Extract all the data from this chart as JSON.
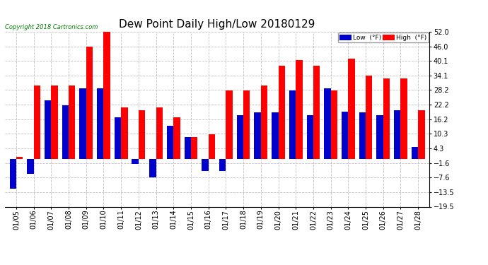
{
  "title": "Dew Point Daily High/Low 20180129",
  "copyright": "Copyright 2018 Cartronics.com",
  "dates": [
    "01/05",
    "01/06",
    "01/07",
    "01/08",
    "01/09",
    "01/10",
    "01/11",
    "01/12",
    "01/13",
    "01/14",
    "01/15",
    "01/16",
    "01/17",
    "01/18",
    "01/19",
    "01/20",
    "01/21",
    "01/22",
    "01/23",
    "01/24",
    "01/25",
    "01/26",
    "01/27",
    "01/28"
  ],
  "high": [
    1.0,
    30.0,
    30.0,
    30.0,
    46.0,
    52.0,
    21.0,
    20.0,
    21.0,
    17.0,
    9.0,
    10.0,
    28.0,
    28.0,
    30.0,
    38.0,
    40.5,
    38.0,
    28.0,
    41.0,
    34.0,
    33.0,
    33.0,
    20.0
  ],
  "low": [
    -12.0,
    -6.0,
    24.0,
    22.0,
    29.0,
    29.0,
    17.0,
    -2.0,
    -7.5,
    13.5,
    9.0,
    -5.0,
    -5.0,
    18.0,
    19.0,
    19.0,
    28.0,
    18.0,
    29.0,
    19.5,
    19.0,
    18.0,
    20.0,
    5.0
  ],
  "ylim": [
    -19.5,
    52.0
  ],
  "yticks": [
    -19.5,
    -13.5,
    -7.6,
    -1.6,
    4.3,
    10.3,
    16.2,
    22.2,
    28.2,
    34.1,
    40.1,
    46.0,
    52.0
  ],
  "high_color": "#ff0000",
  "low_color": "#0000cc",
  "bg_color": "#ffffff",
  "grid_color": "#c0c0c0",
  "title_fontsize": 11,
  "bar_width": 0.38
}
